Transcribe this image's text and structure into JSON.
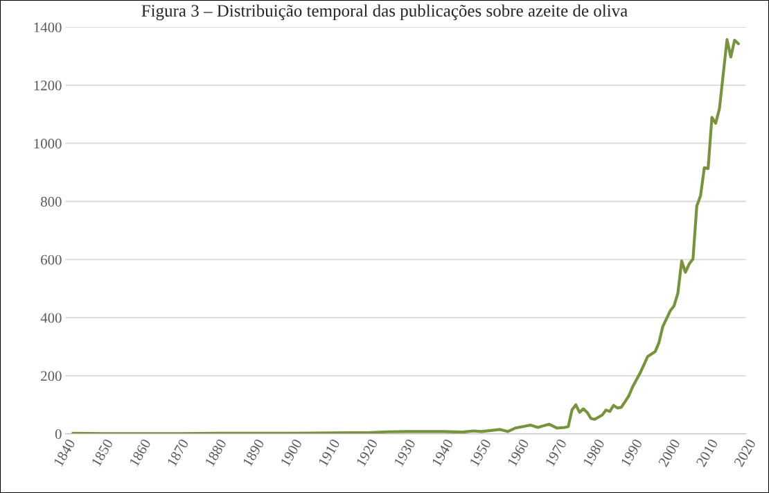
{
  "chart_data": {
    "type": "line",
    "title": "Figura 3 – Distribuição temporal das publicações sobre azeite de oliva",
    "x": [
      1842,
      1850,
      1860,
      1870,
      1880,
      1890,
      1900,
      1910,
      1920,
      1925,
      1930,
      1935,
      1940,
      1945,
      1948,
      1950,
      1955,
      1957,
      1959,
      1961,
      1963,
      1965,
      1966,
      1968,
      1970,
      1972,
      1973,
      1974,
      1975,
      1976,
      1977,
      1978,
      1979,
      1980,
      1982,
      1983,
      1984,
      1985,
      1986,
      1987,
      1988,
      1989,
      1990,
      1992,
      1993,
      1994,
      1996,
      1997,
      1998,
      2000,
      2001,
      2002,
      2003,
      2004,
      2005,
      2006,
      2007,
      2008,
      2009,
      2010,
      2011,
      2012,
      2013,
      2015,
      2016,
      2017,
      2018
    ],
    "series": [
      {
        "color": "#77933c",
        "values": [
          2,
          1,
          1,
          1,
          2,
          2,
          2,
          3,
          4,
          7,
          8,
          8,
          8,
          6,
          10,
          8,
          15,
          8,
          20,
          25,
          30,
          22,
          26,
          33,
          20,
          22,
          25,
          82,
          100,
          74,
          86,
          74,
          53,
          50,
          65,
          82,
          77,
          98,
          89,
          91,
          110,
          130,
          161,
          209,
          237,
          266,
          283,
          314,
          369,
          424,
          441,
          484,
          595,
          556,
          585,
          602,
          784,
          820,
          916,
          913,
          1089,
          1069,
          1120,
          1357,
          1297,
          1355,
          1343
        ]
      }
    ],
    "xlim": [
      1840,
      2020
    ],
    "xticks": [
      1840,
      1850,
      1860,
      1870,
      1880,
      1890,
      1900,
      1910,
      1920,
      1930,
      1940,
      1950,
      1960,
      1970,
      1980,
      1990,
      2000,
      2010,
      2020
    ],
    "ylim": [
      0,
      1400
    ],
    "yticks": [
      0,
      200,
      400,
      600,
      800,
      1000,
      1200,
      1400
    ],
    "grid": "y",
    "marker": "none",
    "line_style": "solid"
  }
}
